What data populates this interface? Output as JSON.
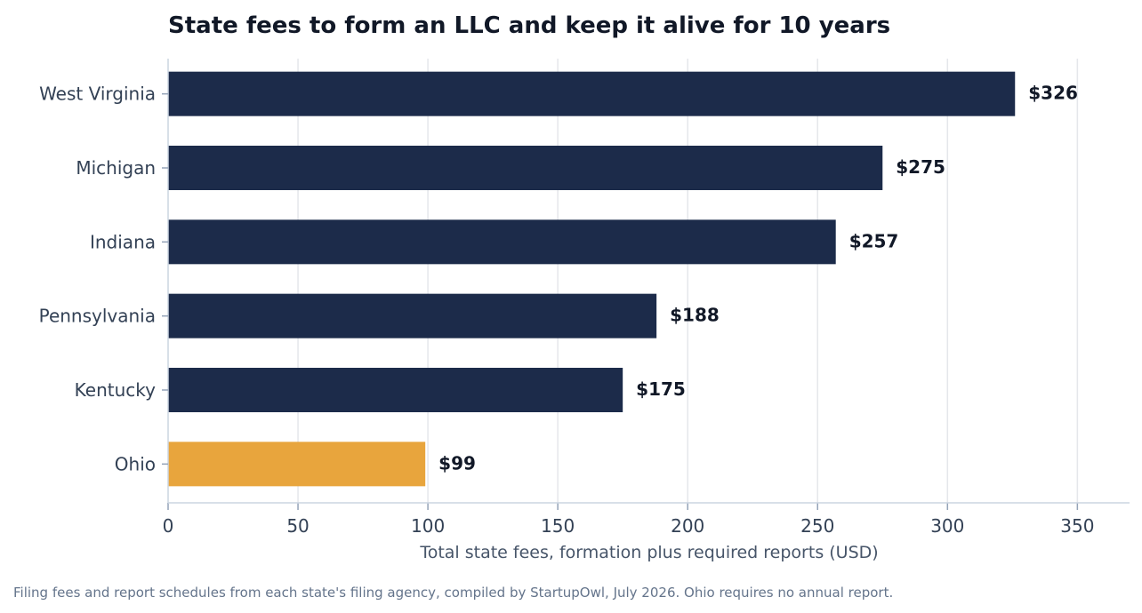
{
  "chart_data": {
    "type": "bar",
    "orientation": "horizontal",
    "title": "State fees to form an LLC and keep it alive for 10 years",
    "xlabel": "Total state fees, formation plus required reports (USD)",
    "ylabel": "",
    "categories": [
      "West Virginia",
      "Michigan",
      "Indiana",
      "Pennsylvania",
      "Kentucky",
      "Ohio"
    ],
    "values": [
      326,
      275,
      257,
      188,
      175,
      99
    ],
    "value_labels": [
      "$326",
      "$275",
      "$257",
      "$188",
      "$175",
      "$99"
    ],
    "xlim": [
      0,
      370
    ],
    "xticks": [
      0,
      50,
      100,
      150,
      200,
      250,
      300,
      350
    ],
    "grid": true,
    "legend": "none",
    "bar_color": "#1c2b4a",
    "highlight_category": "Ohio",
    "highlight_color": "#e8a53d"
  },
  "footnote": "Filing fees and report schedules from each state's filing agency, compiled by StartupOwl, July 2026. Ohio requires no annual report."
}
